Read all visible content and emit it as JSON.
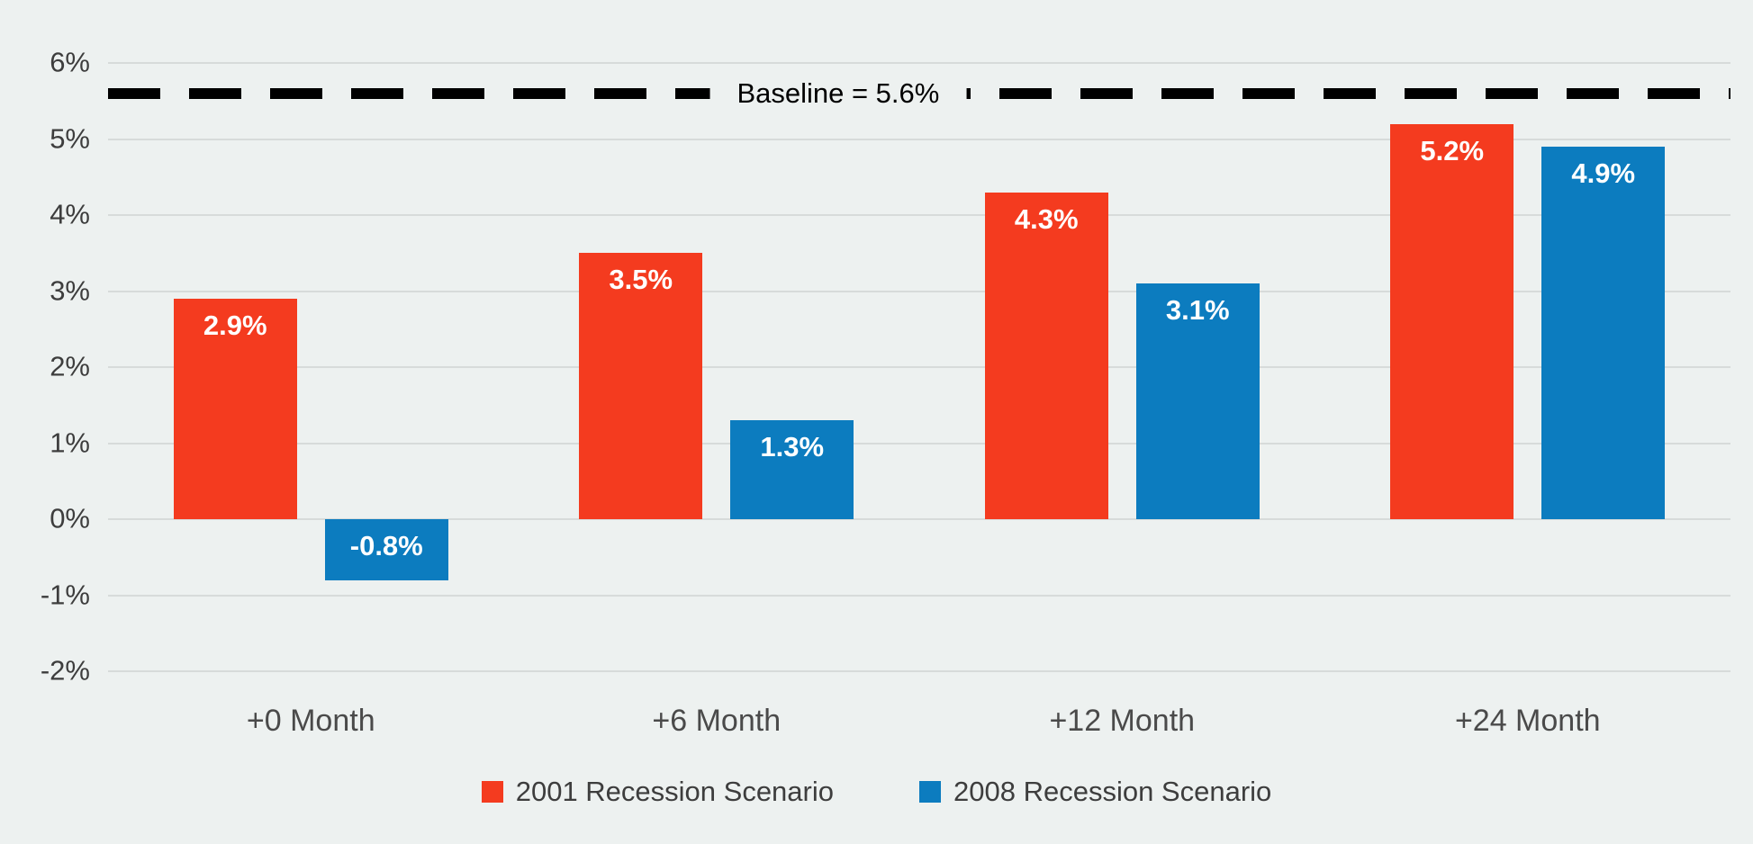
{
  "chart_data": {
    "type": "bar",
    "title": "",
    "categories": [
      "+0 Month",
      "+6 Month",
      "+12 Month",
      "+24 Month"
    ],
    "series": [
      {
        "name": "2001 Recession Scenario",
        "values": [
          2.9,
          3.5,
          4.3,
          5.2
        ],
        "labels": [
          "2.9%",
          "3.5%",
          "4.3%",
          "5.2%"
        ]
      },
      {
        "name": "2008 Recession Scenario",
        "values": [
          -0.8,
          1.3,
          3.1,
          4.9
        ],
        "labels": [
          "-0.8%",
          "1.3%",
          "3.1%",
          "4.9%"
        ]
      }
    ],
    "baseline": {
      "value": 5.6,
      "label": "Baseline = 5.6%"
    },
    "ylim": [
      -2,
      6
    ],
    "ytick_step": 1,
    "ytick_labels": [
      "6%",
      "5%",
      "4%",
      "3%",
      "2%",
      "1%",
      "0%",
      "-1%",
      "-2%"
    ],
    "grid": true,
    "legend_position": "bottom"
  },
  "colors": {
    "background": "#edf1f0",
    "gridline": "#d7dbda",
    "series_2001": "#f43b1f",
    "series_2008": "#0c7cbf",
    "baseline": "#000000",
    "bar_label": "#ffffff",
    "axis_text": "#3d3d3d"
  }
}
